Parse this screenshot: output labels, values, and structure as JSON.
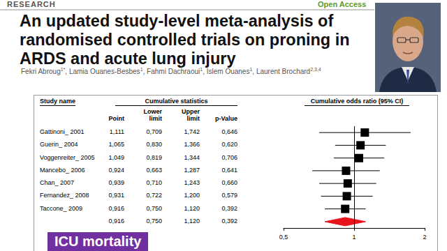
{
  "header": {
    "section": "RESEARCH",
    "access": "Open Access",
    "title": "An updated study-level meta-analysis of randomised controlled trials on proning in ARDS and acute lung injury",
    "authors": [
      {
        "name": "Fekri Abroug",
        "sup": "1*"
      },
      {
        "name": "Lamia Ouanes-Besbes",
        "sup": "1"
      },
      {
        "name": "Fahmi Dachraoui",
        "sup": "1"
      },
      {
        "name": "Islem Ouanes",
        "sup": "1"
      },
      {
        "name": "Laurent Brochard",
        "sup": "2,3,4"
      }
    ]
  },
  "label": "ICU mortality",
  "chart_data": {
    "type": "forest",
    "columns": {
      "study": "Study name",
      "group": "Cumulative statistics",
      "stats": [
        "Point",
        "Lower limit",
        "Upper limit",
        "p-Value"
      ],
      "plot": "Cumulative odds ratio (95% CI)"
    },
    "categories": [
      "Gattinoni_ 2001",
      "Guerin_ 2004",
      "Voggenreiter_ 2005",
      "Mancebo_ 2006",
      "Chan_ 2007",
      "Fernandez_ 2008",
      "Taccone_ 2009",
      null
    ],
    "values": [
      1.111,
      1.065,
      1.049,
      0.924,
      0.939,
      0.931,
      0.916,
      0.916
    ],
    "lower": [
      0.709,
      0.83,
      0.819,
      0.663,
      0.71,
      0.722,
      0.75,
      0.75
    ],
    "upper": [
      1.742,
      1.366,
      1.344,
      1.287,
      1.243,
      1.2,
      1.12,
      1.12
    ],
    "p": [
      0.646,
      0.62,
      0.706,
      0.641,
      0.66,
      0.579,
      0.392,
      0.392
    ],
    "value_labels": [
      [
        "1,111",
        "0,709",
        "1,742",
        "0,646"
      ],
      [
        "1,065",
        "0,830",
        "1,366",
        "0,620"
      ],
      [
        "1,049",
        "0,819",
        "1,344",
        "0,706"
      ],
      [
        "0,924",
        "0,663",
        "1,287",
        "0,641"
      ],
      [
        "0,939",
        "0,710",
        "1,243",
        "0,660"
      ],
      [
        "0,931",
        "0,722",
        "1,200",
        "0,579"
      ],
      [
        "0,916",
        "0,750",
        "1,120",
        "0,392"
      ],
      [
        "0,916",
        "0,750",
        "1,120",
        "0,392"
      ]
    ],
    "colors": [
      "#000000",
      "#000000",
      "#000000",
      "#000000",
      "#000000",
      "#000000",
      "#000000",
      "#e8141c"
    ],
    "marker": "square",
    "log": "x",
    "xlim": [
      0.5,
      2
    ],
    "xticks": [
      {
        "value": 0.5,
        "label": "0,5"
      },
      1,
      2
    ],
    "reference_line": 1
  }
}
